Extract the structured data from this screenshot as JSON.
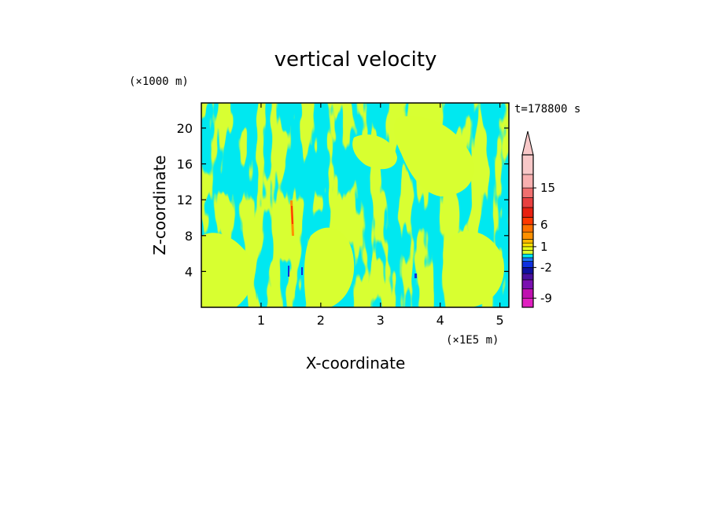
{
  "chart_data": {
    "type": "heatmap",
    "title": "vertical velocity",
    "xlabel": "X-coordinate",
    "ylabel": "Z-coordinate",
    "x_units_label": "(×1E5 m)",
    "y_units_label": "(×1000 m)",
    "time_label": "t=178800 s",
    "xlim": [
      0,
      5.15
    ],
    "ylim": [
      0,
      22.8
    ],
    "x_ticks": [
      "1",
      "2",
      "3",
      "4",
      "5"
    ],
    "x_tick_values": [
      1,
      2,
      3,
      4,
      5
    ],
    "y_ticks": [
      "4",
      "8",
      "12",
      "16",
      "20"
    ],
    "y_tick_values": [
      4,
      8,
      12,
      16,
      20
    ],
    "colorbar": {
      "levels": [
        -12,
        -9,
        -6,
        -4,
        -3,
        -2,
        -1,
        -0.5,
        0,
        0.5,
        1,
        2,
        3,
        4,
        6,
        8,
        10,
        12,
        15,
        18,
        24
      ],
      "colors": [
        "#e020c0",
        "#c010b0",
        "#7a10b0",
        "#4a10a0",
        "#1010a0",
        "#1030e0",
        "#1a78ff",
        "#00e8f0",
        "#d8ff30",
        "#e8ff18",
        "#ffe000",
        "#ffb800",
        "#ff9000",
        "#ff7000",
        "#ff3800",
        "#e82010",
        "#e84040",
        "#f07070",
        "#f8b0b0",
        "#f8c8c8"
      ],
      "tick_labels": [
        "15",
        "6",
        "1",
        "-2",
        "-9"
      ],
      "tick_values": [
        15,
        6,
        1,
        -2,
        -9
      ],
      "extend": "max"
    },
    "field_description_values": {
      "dominant_negative": "#00e8f0",
      "dominant_positive": "#d8ff30"
    }
  }
}
